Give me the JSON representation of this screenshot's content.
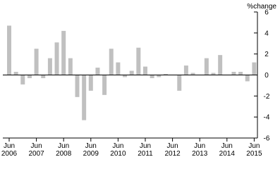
{
  "chart_data": {
    "type": "bar",
    "y_label": "%change",
    "categories": [
      "Jun 2006",
      null,
      null,
      null,
      "Jun 2007",
      null,
      null,
      null,
      "Jun 2008",
      null,
      null,
      null,
      "Jun 2009",
      null,
      null,
      null,
      "Jun 2010",
      null,
      null,
      null,
      "Jun 2011",
      null,
      null,
      null,
      "Jun 2012",
      null,
      null,
      null,
      "Jun 2013",
      null,
      null,
      null,
      "Jun 2014",
      null,
      null,
      null,
      "Jun 2015"
    ],
    "values": [
      4.7,
      0.3,
      -0.9,
      -0.3,
      2.5,
      -0.3,
      1.6,
      3.1,
      4.2,
      1.6,
      -2.1,
      -4.3,
      -1.5,
      0.7,
      -1.9,
      2.5,
      1.2,
      -0.2,
      0.4,
      2.6,
      0.8,
      -0.3,
      -0.2,
      0.1,
      0,
      -1.5,
      0.9,
      0.2,
      0,
      1.6,
      0.2,
      1.9,
      0,
      0.3,
      0.3,
      -0.6,
      1.2
    ],
    "color": "#c0c0c0",
    "ylim": [
      -6,
      6
    ],
    "yticks": [
      -6,
      -4,
      -2,
      0,
      2,
      4,
      6
    ],
    "y_axis_side": "right"
  }
}
